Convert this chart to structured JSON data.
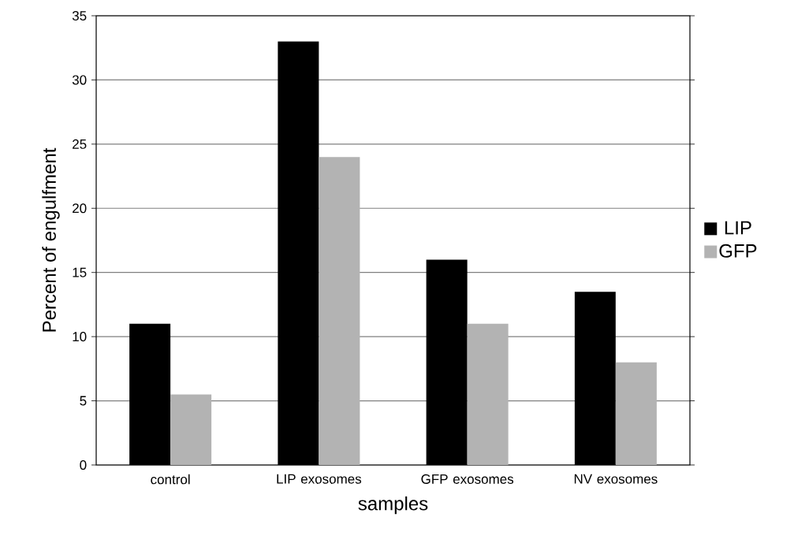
{
  "chart_data": {
    "type": "bar",
    "xlabel": "samples",
    "ylabel": "Percent of engulfment",
    "categories": [
      "control",
      "LIP exosomes",
      "GFP exosomes",
      "NV exosomes"
    ],
    "series": [
      {
        "name": "LIP",
        "color": "#000000",
        "values": [
          11,
          33,
          16,
          13.5
        ]
      },
      {
        "name": "GFP",
        "color": "#b3b3b3",
        "values": [
          5.5,
          24,
          11,
          8
        ]
      }
    ],
    "ylim": [
      0,
      35
    ],
    "yticks": [
      0,
      5,
      10,
      15,
      20,
      25,
      30,
      35
    ],
    "grid": "y",
    "legend": "right"
  }
}
